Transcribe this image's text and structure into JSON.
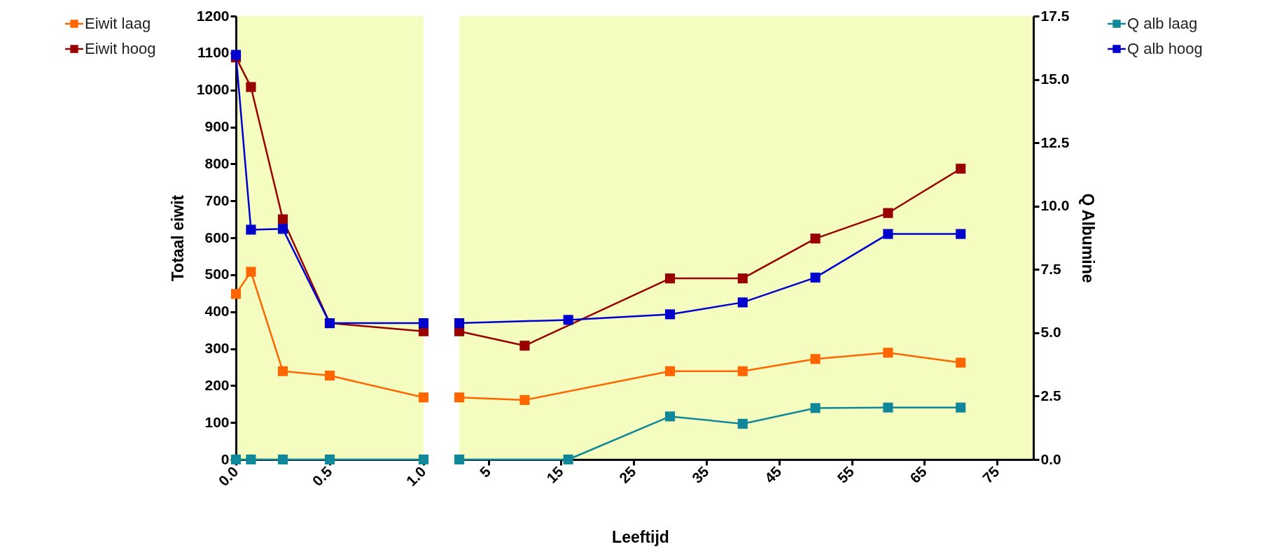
{
  "chart_data": [
    {
      "type": "line",
      "ylabel": "Totaal eiwit",
      "legend": "left",
      "marker": "square",
      "tick_labels": "xy",
      "xlim": [
        0,
        1
      ],
      "xticks": [
        {
          "value": 0,
          "label": "0.0"
        },
        {
          "value": 0.5,
          "label": "0.5"
        },
        {
          "value": 1,
          "label": "1.0"
        }
      ],
      "ylim": [
        0,
        1200
      ],
      "yticks": [
        0,
        100,
        200,
        300,
        400,
        500,
        600,
        700,
        800,
        900,
        1000,
        1100,
        1200
      ],
      "y2lim": [
        0,
        17.5
      ],
      "series": [
        {
          "name": "Eiwit laag",
          "color": "#ff6600",
          "x": [
            0,
            0.08,
            0.25,
            0.5,
            1
          ],
          "values": [
            448,
            508,
            239,
            227,
            168
          ]
        },
        {
          "name": "Eiwit hoog",
          "color": "#990000",
          "x": [
            0,
            0.08,
            0.25,
            0.5,
            1
          ],
          "values": [
            1088,
            1008,
            650,
            369,
            347
          ]
        },
        {
          "color": "#118899",
          "axis": "y2",
          "x": [
            0,
            0.08,
            0.25,
            0.5,
            1
          ],
          "values": [
            0,
            0,
            0,
            0,
            0
          ]
        },
        {
          "color": "#0000cc",
          "axis": "y2",
          "x": [
            0,
            0.08,
            0.25,
            0.5,
            1
          ],
          "values": [
            15.97,
            9.07,
            9.1,
            5.38,
            5.38
          ]
        }
      ]
    },
    {
      "type": "line",
      "xlabel": "Leeftijd",
      "y2label": "Q Albumine",
      "legend": "right",
      "marker": "square",
      "tick_labels": "xy2",
      "xlim": [
        1,
        80
      ],
      "xticks": [
        5,
        15,
        25,
        35,
        45,
        55,
        65,
        75
      ],
      "ylim": [
        0,
        1200
      ],
      "y2lim": [
        0,
        17.5
      ],
      "y2ticks": [
        {
          "value": 0,
          "label": "0.0"
        },
        {
          "value": 2.5,
          "label": "2.5"
        },
        {
          "value": 5,
          "label": "5.0"
        },
        {
          "value": 7.5,
          "label": "7.5"
        },
        {
          "value": 10,
          "label": "10.0"
        },
        {
          "value": 12.5,
          "label": "12.5"
        },
        {
          "value": 15,
          "label": "15.0"
        },
        {
          "value": 17.5,
          "label": "17.5"
        }
      ],
      "series": [
        {
          "color": "#ff6600",
          "x": [
            1,
            10,
            30,
            40,
            50,
            60,
            70
          ],
          "values": [
            168,
            161,
            239,
            239,
            272,
            289,
            262
          ]
        },
        {
          "color": "#990000",
          "x": [
            1,
            10,
            30,
            40,
            50,
            60,
            70
          ],
          "values": [
            347,
            308,
            490,
            490,
            598,
            667,
            787
          ]
        },
        {
          "name": "Q alb laag",
          "color": "#118899",
          "axis": "y2",
          "x": [
            1,
            16,
            30,
            40,
            50,
            60,
            70
          ],
          "values": [
            0,
            0,
            1.7,
            1.41,
            2.03,
            2.05,
            2.05
          ]
        },
        {
          "name": "Q alb hoog",
          "color": "#0000cc",
          "axis": "y2",
          "x": [
            1,
            16,
            30,
            40,
            50,
            60,
            70
          ],
          "values": [
            5.38,
            5.51,
            5.73,
            6.2,
            7.18,
            8.9,
            8.9
          ]
        }
      ]
    }
  ]
}
